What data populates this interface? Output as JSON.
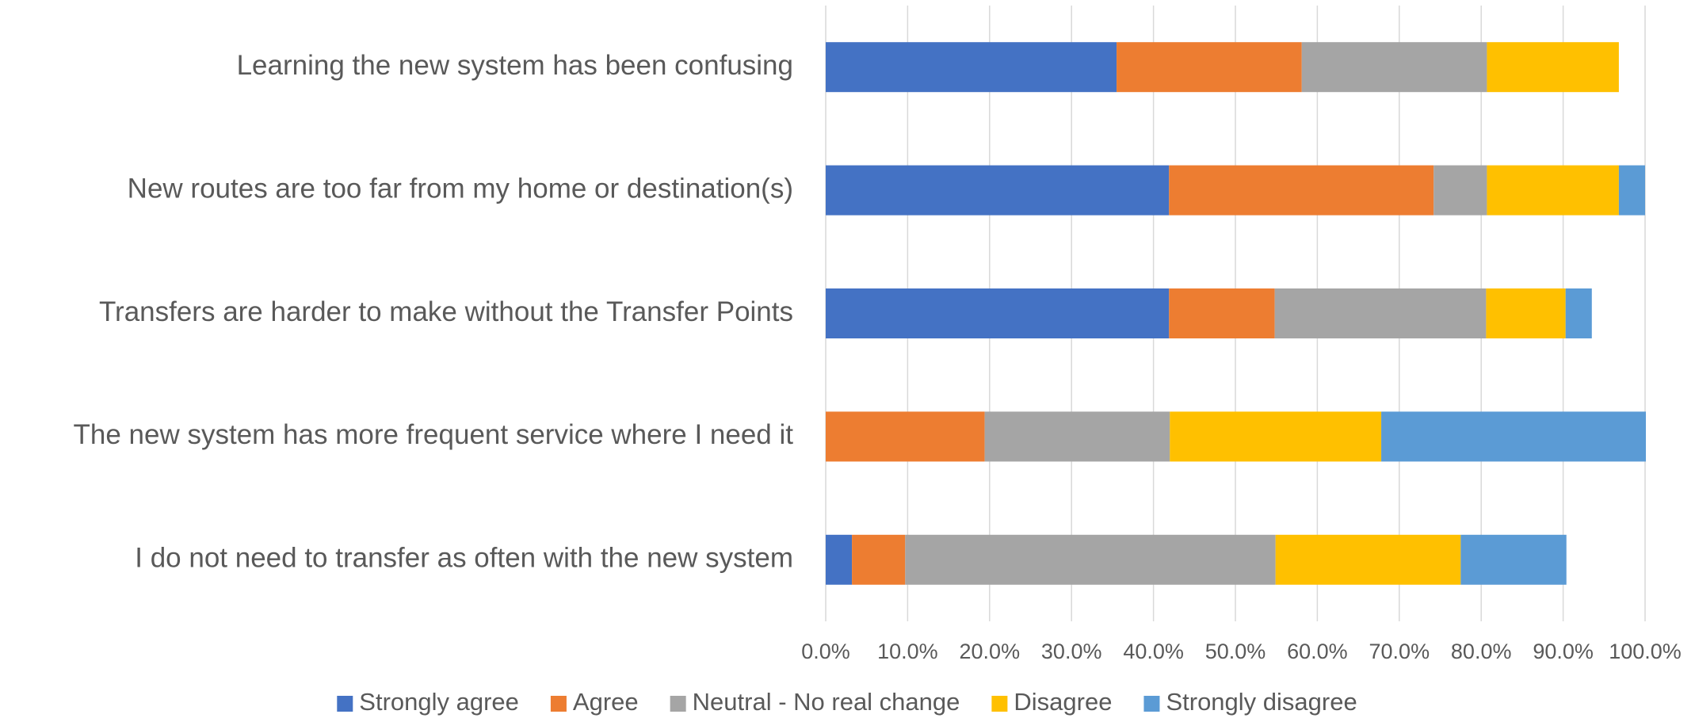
{
  "chart_data": {
    "type": "stacked-bar-horizontal",
    "categories": [
      "Learning the new system has been confusing",
      "New routes are too far from my home or destination(s)",
      "Transfers are harder to make without the Transfer Points",
      "The new system has more frequent service where I need it",
      "I do not need to transfer as often with the new system"
    ],
    "series": [
      {
        "name": "Strongly agree",
        "color": "#4472c4",
        "values": [
          35.5,
          41.9,
          41.9,
          0,
          3.2
        ]
      },
      {
        "name": "Agree",
        "color": "#ed7d31",
        "values": [
          22.6,
          32.3,
          12.9,
          19.4,
          6.5
        ]
      },
      {
        "name": "Neutral - No real change",
        "color": "#a5a5a5",
        "values": [
          22.6,
          6.5,
          25.8,
          22.6,
          45.2
        ]
      },
      {
        "name": "Disagree",
        "color": "#ffc000",
        "values": [
          16.1,
          16.1,
          9.7,
          25.8,
          22.6
        ]
      },
      {
        "name": "Strongly disagree",
        "color": "#5b9bd5",
        "values": [
          0,
          3.2,
          3.2,
          32.3,
          12.9
        ]
      }
    ],
    "xlim": [
      0,
      100
    ],
    "xticks": [
      {
        "value": 0,
        "label": "0.0%"
      },
      {
        "value": 10,
        "label": "10.0%"
      },
      {
        "value": 20,
        "label": "20.0%"
      },
      {
        "value": 30,
        "label": "30.0%"
      },
      {
        "value": 40,
        "label": "40.0%"
      },
      {
        "value": 50,
        "label": "50.0%"
      },
      {
        "value": 60,
        "label": "60.0%"
      },
      {
        "value": 70,
        "label": "70.0%"
      },
      {
        "value": 80,
        "label": "80.0%"
      },
      {
        "value": 90,
        "label": "90.0%"
      },
      {
        "value": 100,
        "label": "100.0%"
      }
    ],
    "grid": true,
    "legend": "bottom"
  }
}
